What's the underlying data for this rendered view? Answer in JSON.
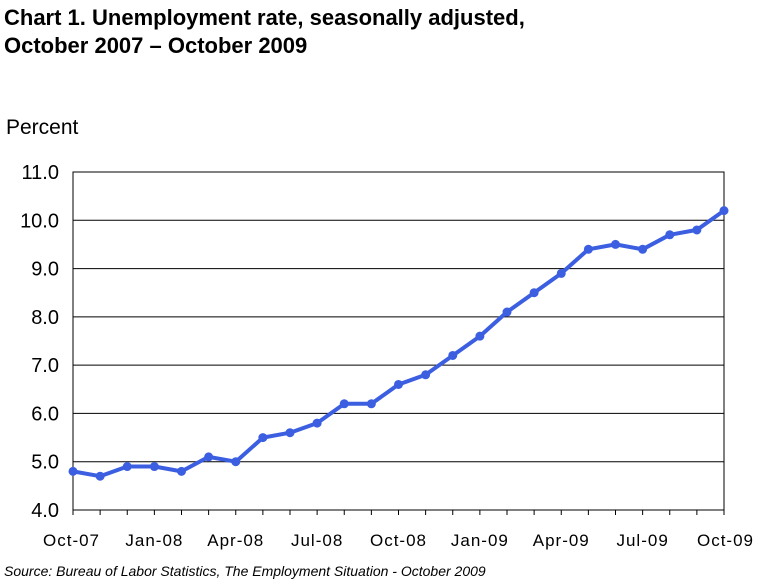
{
  "chart_data": {
    "type": "line",
    "title": "Chart 1. Unemployment rate, seasonally adjusted,",
    "subtitle": "October 2007 – October 2009",
    "ylabel": "Percent",
    "xlabel": "",
    "source": "Source: Bureau of Labor Statistics, The Employment Situation - October 2009",
    "ylim": [
      4.0,
      11.0
    ],
    "yticks": [
      "4.0",
      "5.0",
      "6.0",
      "7.0",
      "8.0",
      "9.0",
      "10.0",
      "11.0"
    ],
    "xtick_labels": [
      "Oct-07",
      "Jan-08",
      "Apr-08",
      "Jul-08",
      "Oct-08",
      "Jan-09",
      "Apr-09",
      "Jul-09",
      "Oct-09"
    ],
    "xtick_every": 3,
    "grid": true,
    "line_color": "#3b5fe0",
    "series": [
      {
        "values": [
          4.8,
          4.7,
          4.9,
          4.9,
          4.8,
          5.1,
          5.0,
          5.5,
          5.6,
          5.8,
          6.2,
          6.2,
          6.6,
          6.8,
          7.2,
          7.6,
          8.1,
          8.5,
          8.9,
          9.4,
          9.5,
          9.4,
          9.7,
          9.8,
          10.2
        ]
      }
    ]
  }
}
